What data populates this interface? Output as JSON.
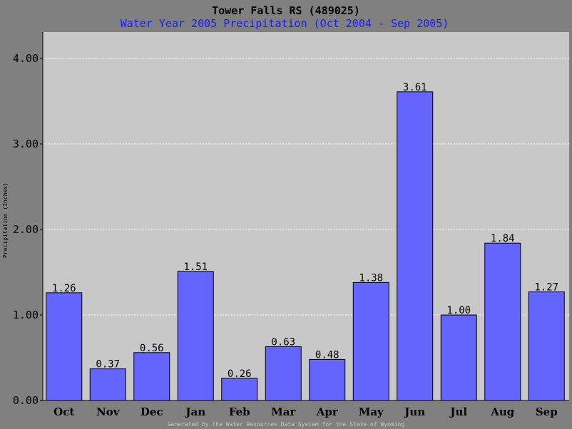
{
  "chart_data": {
    "type": "bar",
    "title": "Tower Falls RS (489025)",
    "subtitle": "Water Year 2005 Precipitation (Oct 2004 - Sep 2005)",
    "ylabel": "Precipitation (Inches)",
    "xlabel": "",
    "categories": [
      "Oct",
      "Nov",
      "Dec",
      "Jan",
      "Feb",
      "Mar",
      "Apr",
      "May",
      "Jun",
      "Jul",
      "Aug",
      "Sep"
    ],
    "values": [
      1.26,
      0.37,
      0.56,
      1.51,
      0.26,
      0.63,
      0.48,
      1.38,
      3.61,
      1.0,
      1.84,
      1.27
    ],
    "value_labels": [
      "1.26",
      "0.37",
      "0.56",
      "1.51",
      "0.26",
      "0.63",
      "0.48",
      "1.38",
      "3.61",
      "1.00",
      "1.84",
      "1.27"
    ],
    "ylim": [
      0,
      4.35
    ],
    "yticks": [
      0,
      1,
      2,
      3,
      4
    ],
    "ytick_labels": [
      "0.00",
      "1.00",
      "2.00",
      "3.00",
      "4.00"
    ],
    "grid": true,
    "bar_color": "#6464ff",
    "plot_background": "#c8c8c8",
    "page_background": "#808080",
    "title_color": "#000000",
    "subtitle_color": "#1a1aff",
    "footer": "Generated by the Water Resources Data System for the State of Wyoming"
  }
}
